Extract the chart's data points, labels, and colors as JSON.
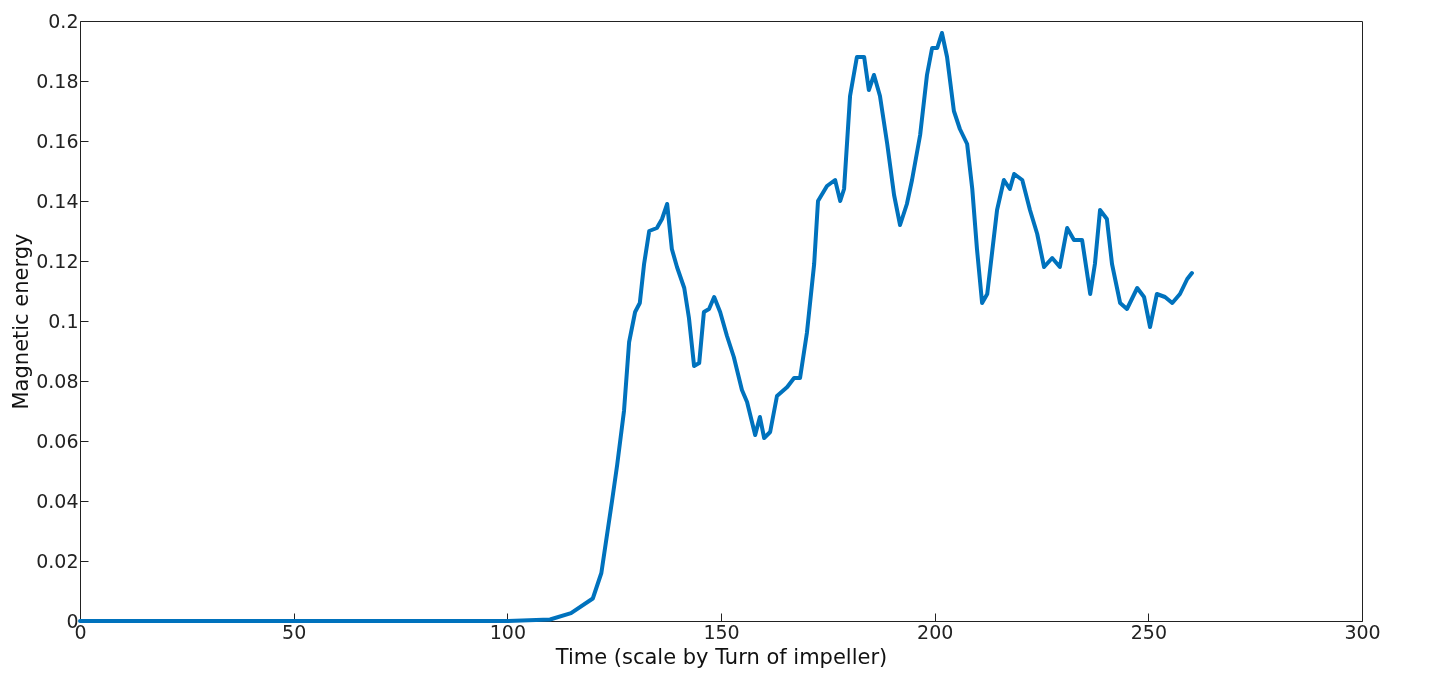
{
  "chart_data": {
    "type": "line",
    "xlabel": "Time (scale by Turn of impeller)",
    "ylabel": "Magnetic energy",
    "x": [
      0,
      50,
      100,
      110,
      114.9,
      120,
      122,
      124.5,
      125.7,
      127.3,
      128.5,
      129.9,
      131,
      132,
      133.2,
      135,
      136.2,
      137.4,
      138.5,
      139.7,
      141.4,
      142.5,
      143.7,
      144.9,
      146,
      147.2,
      148.4,
      149.8,
      151.4,
      153,
      154.9,
      156.1,
      158,
      159.1,
      160.1,
      161.5,
      163.1,
      165.5,
      167.1,
      168.5,
      170.1,
      171.8,
      172.7,
      174.8,
      176.7,
      177.9,
      178.8,
      180.2,
      181.8,
      183.5,
      184.6,
      185.8,
      187.2,
      188.9,
      190.5,
      191.9,
      193.5,
      194.7,
      196.6,
      198.2,
      199.4,
      200.6,
      201.7,
      202.9,
      204.5,
      205.9,
      207.6,
      208.8,
      209.9,
      211.1,
      212.3,
      214.6,
      216.2,
      217.6,
      218.6,
      220.5,
      222.3,
      224,
      225.6,
      227.5,
      229.3,
      231,
      232.6,
      234.5,
      236.4,
      237.5,
      238.7,
      240.3,
      241.5,
      243.4,
      245,
      247.4,
      249,
      250.4,
      252,
      253.9,
      255.6,
      257.4,
      259.1,
      260.2
    ],
    "series": [
      {
        "color": "#0072bd",
        "values": [
          0,
          0,
          0,
          0.0005,
          0.0026,
          0.0075,
          0.016,
          0.04,
          0.052,
          0.07,
          0.093,
          0.103,
          0.106,
          0.119,
          0.13,
          0.131,
          0.134,
          0.139,
          0.124,
          0.118,
          0.111,
          0.101,
          0.085,
          0.086,
          0.103,
          0.104,
          0.108,
          0.103,
          0.095,
          0.088,
          0.077,
          0.073,
          0.062,
          0.068,
          0.061,
          0.063,
          0.075,
          0.078,
          0.081,
          0.081,
          0.096,
          0.119,
          0.14,
          0.145,
          0.147,
          0.14,
          0.144,
          0.175,
          0.188,
          0.188,
          0.177,
          0.182,
          0.175,
          0.159,
          0.142,
          0.132,
          0.139,
          0.147,
          0.162,
          0.182,
          0.191,
          0.191,
          0.196,
          0.188,
          0.17,
          0.164,
          0.159,
          0.144,
          0.124,
          0.106,
          0.109,
          0.137,
          0.147,
          0.144,
          0.149,
          0.147,
          0.137,
          0.129,
          0.118,
          0.121,
          0.118,
          0.131,
          0.127,
          0.127,
          0.109,
          0.119,
          0.137,
          0.134,
          0.119,
          0.106,
          0.104,
          0.111,
          0.108,
          0.098,
          0.109,
          0.108,
          0.106,
          0.109,
          0.114,
          0.116
        ]
      }
    ],
    "xlim": [
      0,
      300
    ],
    "xticks": [
      0,
      50,
      100,
      150,
      200,
      250,
      300
    ],
    "ylim": [
      0,
      0.2
    ],
    "yticks": [
      0,
      0.02,
      0.04,
      0.06,
      0.08,
      0.1,
      0.12,
      0.14,
      0.16,
      0.18,
      0.2
    ],
    "grid": false,
    "marker": "none",
    "line_style": "solid"
  }
}
